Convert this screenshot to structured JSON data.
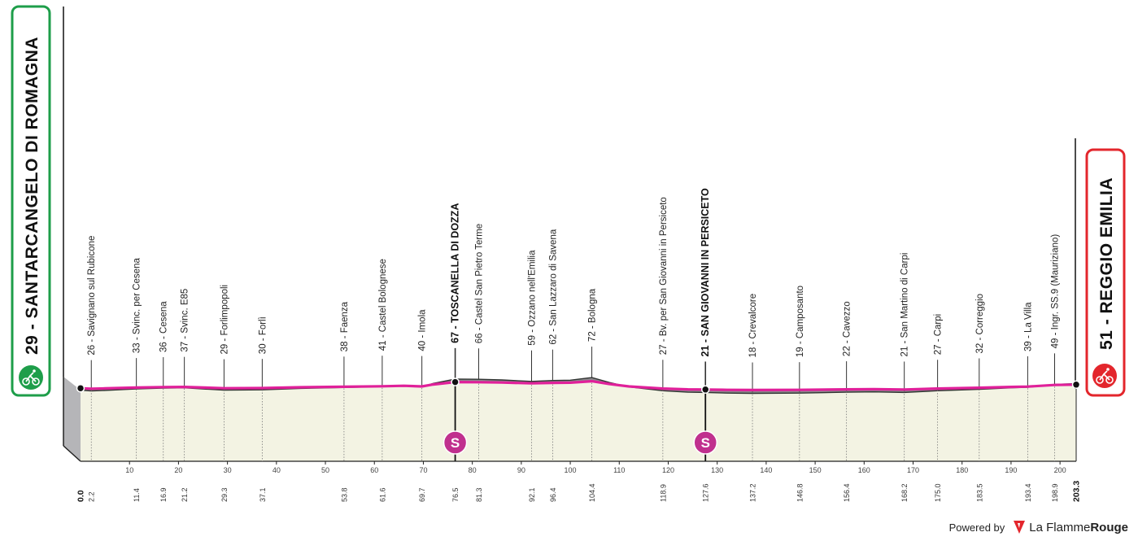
{
  "start": {
    "label": "29 - SANTARCANGELO DI ROMAGNA",
    "altitude": 29,
    "name": "SANTARCANGELO DI ROMAGNA",
    "color": "#1e9e4a"
  },
  "finish": {
    "label": "51 - REGGIO EMILIA",
    "altitude": 51,
    "name": "REGGIO EMILIA",
    "color": "#e3262c"
  },
  "credit": {
    "powered_by": "Powered by",
    "brand_light": "La Flamme",
    "brand_bold": "Rouge"
  },
  "colors": {
    "route": "#e0209a",
    "terrain_top": "#8a8a8c",
    "terrain_base": "#b5b5b8",
    "plain": "#f3f3e3",
    "sprint_badge": "#c0308e"
  },
  "chart_data": {
    "type": "area",
    "title": "",
    "xlabel": "",
    "ylabel": "",
    "xlim": [
      0,
      203.3
    ],
    "x_ticks": [
      10,
      20,
      30,
      40,
      50,
      60,
      70,
      80,
      90,
      100,
      110,
      120,
      130,
      140,
      150,
      160,
      170,
      180,
      190,
      200
    ],
    "total_distance_label": "203.3",
    "waypoints": [
      {
        "km": "2.2",
        "label": "26 - Savignano sul Rubicone",
        "bold": false
      },
      {
        "km": "11.4",
        "label": "33 - Svinc. per Cesena",
        "bold": false
      },
      {
        "km": "16.9",
        "label": "36 - Cesena",
        "bold": false
      },
      {
        "km": "21.2",
        "label": "37 - Svinc. E85",
        "bold": false
      },
      {
        "km": "29.3",
        "label": "29 - Forlimpopoli",
        "bold": false
      },
      {
        "km": "37.1",
        "label": "30 - Forlì",
        "bold": false
      },
      {
        "km": "53.8",
        "label": "38 - Faenza",
        "bold": false
      },
      {
        "km": "61.6",
        "label": "41 - Castel Bolognese",
        "bold": false
      },
      {
        "km": "69.7",
        "label": "40 - Imola",
        "bold": false
      },
      {
        "km": "76.5",
        "label": "67 - TOSCANELLA DI DOZZA",
        "bold": true
      },
      {
        "km": "81.3",
        "label": "66 - Castel San Pietro Terme",
        "bold": false
      },
      {
        "km": "92.1",
        "label": "59 - Ozzano nell'Emilia",
        "bold": false
      },
      {
        "km": "96.4",
        "label": "62 - San Lazzaro di Savena",
        "bold": false
      },
      {
        "km": "104.4",
        "label": "72 - Bologna",
        "bold": false
      },
      {
        "km": "118.9",
        "label": "27 - Bv. per San Giovanni in Persiceto",
        "bold": false
      },
      {
        "km": "127.6",
        "label": "21 - SAN GIOVANNI IN PERSICETO",
        "bold": true
      },
      {
        "km": "137.2",
        "label": "18 - Crevalcore",
        "bold": false
      },
      {
        "km": "146.8",
        "label": "19 - Camposanto",
        "bold": false
      },
      {
        "km": "156.4",
        "label": "22 - Cavezzo",
        "bold": false
      },
      {
        "km": "168.2",
        "label": "21 - San Martino di Carpi",
        "bold": false
      },
      {
        "km": "175.0",
        "label": "27 - Carpi",
        "bold": false
      },
      {
        "km": "183.5",
        "label": "32 - Correggio",
        "bold": false
      },
      {
        "km": "193.4",
        "label": "39 - La Villa",
        "bold": false
      },
      {
        "km": "198.9",
        "label": "49 - Ingr. SS.9 (Mauriziano)",
        "bold": false
      }
    ],
    "start_km": "0.0",
    "sprints": [
      {
        "km": 76.5,
        "badge": "S"
      },
      {
        "km": 127.6,
        "badge": "S"
      }
    ],
    "altitude_profile": {
      "x": [
        0,
        2.2,
        5,
        11.4,
        16.9,
        21.2,
        29.3,
        37.1,
        45,
        53.8,
        61.6,
        66,
        69.7,
        72,
        76.5,
        81.3,
        86,
        92.1,
        96.4,
        100,
        104.4,
        108,
        112,
        118.9,
        124,
        127.6,
        132,
        137.2,
        146.8,
        156.4,
        162,
        168.2,
        175.0,
        183.5,
        190,
        193.4,
        198.9,
        203.3
      ],
      "y": [
        29,
        26,
        28,
        33,
        36,
        37,
        29,
        30,
        35,
        38,
        41,
        44,
        40,
        52,
        67,
        66,
        64,
        59,
        62,
        63,
        72,
        55,
        40,
        27,
        22,
        21,
        19,
        18,
        19,
        22,
        23,
        21,
        27,
        32,
        37,
        39,
        49,
        51
      ]
    }
  }
}
